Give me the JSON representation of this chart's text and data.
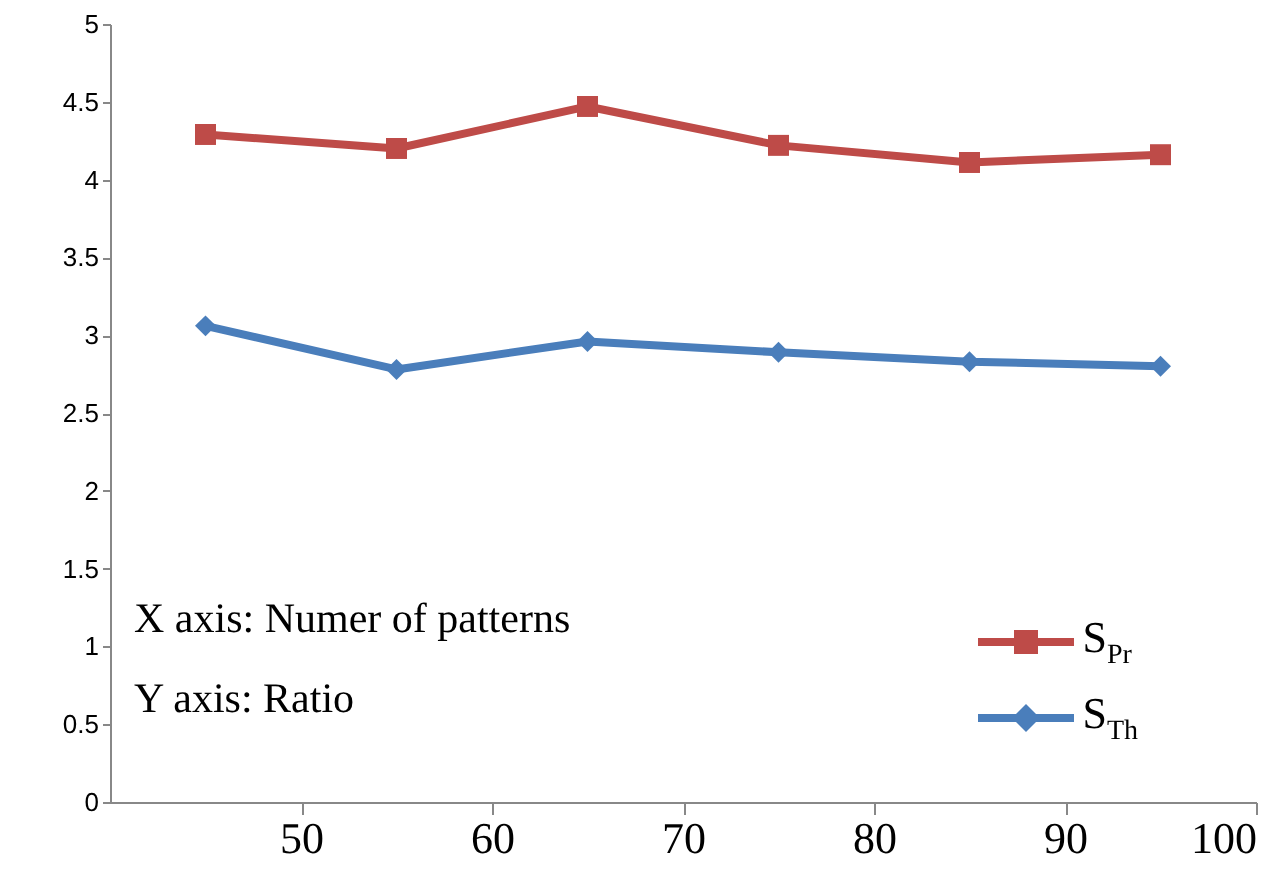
{
  "chart_data": {
    "type": "line",
    "x": [
      45,
      55,
      65,
      75,
      85,
      95
    ],
    "series": [
      {
        "name": "S$_{Pr}$",
        "color": "#be4b48",
        "marker": "square",
        "values": [
          4.29,
          4.2,
          4.47,
          4.22,
          4.11,
          4.16
        ]
      },
      {
        "name": "S$_{Th}$",
        "color": "#4a7ebb",
        "marker": "diamond",
        "values": [
          3.06,
          2.78,
          2.96,
          2.89,
          2.83,
          2.8
        ]
      }
    ],
    "xlim": [
      40,
      100
    ],
    "xticks": [
      50,
      60,
      70,
      80,
      90,
      100
    ],
    "ylim": [
      0,
      5
    ],
    "yticks": [
      0,
      0.5,
      1,
      1.5,
      2,
      2.5,
      3,
      3.5,
      4,
      4.5,
      5
    ],
    "annotations": [
      "X axis: Numer of patterns",
      "Y axis: Ratio"
    ],
    "legend": "bottom right",
    "grid": false
  }
}
